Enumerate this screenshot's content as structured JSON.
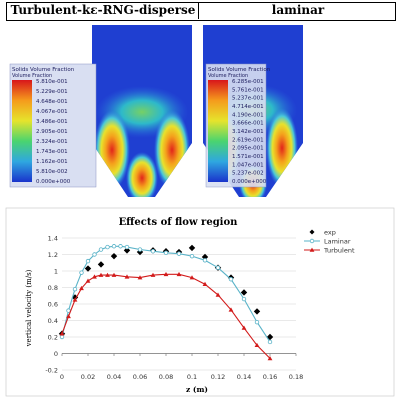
{
  "contours": [
    {
      "title": "Turbulent-kε-RNG-disperse",
      "legend_title": "Solids Volume Fraction",
      "legend_subtitle": "Volume Fraction",
      "legend_values": [
        "5.810e-001",
        "5.229e-001",
        "4.648e-001",
        "4.067e-001",
        "3.486e-001",
        "2.905e-001",
        "2.324e-001",
        "1.743e-001",
        "1.162e-001",
        "5.810e-002",
        "0.000e+000"
      ]
    },
    {
      "title": "laminar",
      "legend_title": "Solids Volume Fraction",
      "legend_subtitle": "Volume Fraction",
      "legend_values": [
        "6.285e-001",
        "5.761e-001",
        "5.237e-001",
        "4.714e-001",
        "4.190e-001",
        "3.666e-001",
        "3.142e-001",
        "2.619e-001",
        "2.095e-001",
        "1.571e-001",
        "1.047e-001",
        "5.237e-002",
        "0.000e+000"
      ]
    }
  ],
  "colors": {
    "exp": "#000000",
    "laminar": "#5ab3c8",
    "turbulent": "#d21a1a",
    "contour_bg": "#1f3fd1"
  },
  "chart_data": {
    "type": "line",
    "title": "Effects of flow region",
    "xlabel": "z (m)",
    "ylabel": "vertical velocity (m/s)",
    "xlim": [
      0,
      0.18
    ],
    "ylim": [
      -0.2,
      1.4
    ],
    "xticks": [
      "0",
      "0.02",
      "0.04",
      "0.06",
      "0.08",
      "0.1",
      "0.12",
      "0.14",
      "0.16",
      "0.18"
    ],
    "yticks": [
      "-0.2",
      "0",
      "0.2",
      "0.4",
      "0.6",
      "0.8",
      "1",
      "1.2",
      "1.4"
    ],
    "legend_position": "top-right",
    "series": [
      {
        "name": "exp",
        "marker": "diamond",
        "x": [
          0.0,
          0.01,
          0.02,
          0.03,
          0.04,
          0.05,
          0.06,
          0.07,
          0.08,
          0.09,
          0.1,
          0.11,
          0.12,
          0.13,
          0.14,
          0.15,
          0.16
        ],
        "y": [
          0.24,
          0.68,
          1.03,
          1.08,
          1.18,
          1.25,
          1.23,
          1.25,
          1.24,
          1.23,
          1.28,
          1.17,
          1.04,
          0.92,
          0.74,
          0.51,
          0.2
        ]
      },
      {
        "name": "Laminar",
        "marker": "circle",
        "x": [
          0.0,
          0.005,
          0.01,
          0.015,
          0.02,
          0.025,
          0.03,
          0.035,
          0.04,
          0.045,
          0.05,
          0.06,
          0.07,
          0.08,
          0.09,
          0.1,
          0.11,
          0.12,
          0.13,
          0.14,
          0.15,
          0.16
        ],
        "y": [
          0.2,
          0.52,
          0.78,
          0.98,
          1.12,
          1.2,
          1.26,
          1.29,
          1.3,
          1.3,
          1.29,
          1.26,
          1.24,
          1.22,
          1.21,
          1.18,
          1.13,
          1.04,
          0.9,
          0.66,
          0.38,
          0.14
        ]
      },
      {
        "name": "Turbulent",
        "marker": "triangle",
        "x": [
          0.0,
          0.005,
          0.01,
          0.015,
          0.02,
          0.025,
          0.03,
          0.035,
          0.04,
          0.05,
          0.06,
          0.07,
          0.08,
          0.09,
          0.1,
          0.11,
          0.12,
          0.13,
          0.14,
          0.15,
          0.16
        ],
        "y": [
          0.24,
          0.45,
          0.65,
          0.79,
          0.88,
          0.93,
          0.95,
          0.95,
          0.95,
          0.93,
          0.92,
          0.95,
          0.96,
          0.96,
          0.92,
          0.84,
          0.71,
          0.53,
          0.31,
          0.1,
          -0.06
        ]
      }
    ]
  }
}
